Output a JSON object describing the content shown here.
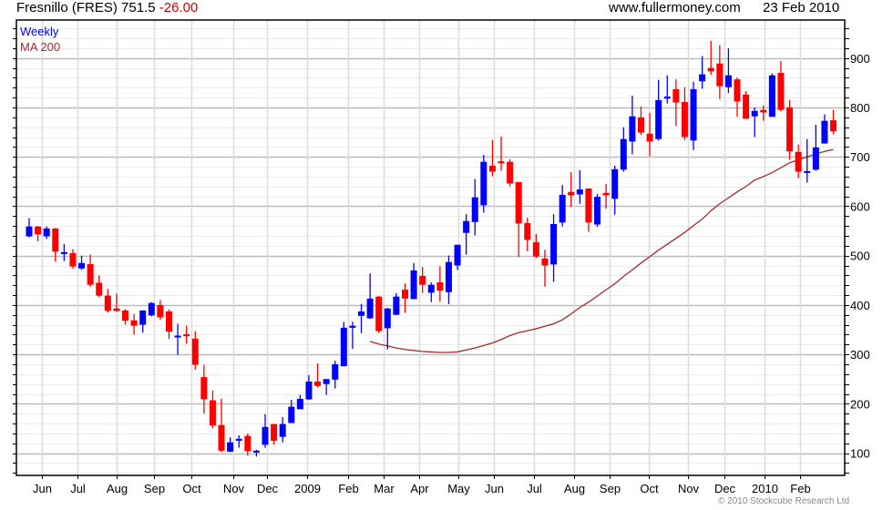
{
  "header": {
    "title": "Fresnillo (FRES) 751.5",
    "change": "-26.00",
    "site": "www.fullermoney.com",
    "date": "23 Feb 2010"
  },
  "legend": {
    "period": "Weekly",
    "ma": "MA 200"
  },
  "copyright": "© 2010 Stockcube Research Ltd",
  "colors": {
    "up": "#0000ff",
    "down": "#ff0000",
    "ma": "#a52a2a",
    "grid": "#dcdcdc",
    "grid_major": "#bbbbbb"
  },
  "chart_data": {
    "type": "candlestick",
    "title": "Fresnillo (FRES) 751.5 -26.00",
    "ylim": [
      55,
      977
    ],
    "xlim": [
      -0.46,
      94.3
    ],
    "y_ticks": [
      100,
      200,
      300,
      400,
      500,
      600,
      700,
      800,
      900
    ],
    "y_minor_step": 20,
    "grid": true,
    "x_ticks": [
      {
        "label": "Jun",
        "week": 2.46
      },
      {
        "label": "Jul",
        "week": 6.5
      },
      {
        "label": "Aug",
        "week": 11.0
      },
      {
        "label": "Sep",
        "week": 15.3
      },
      {
        "label": "Oct",
        "week": 19.6
      },
      {
        "label": "Nov",
        "week": 24.3
      },
      {
        "label": "Dec",
        "week": 28.2
      },
      {
        "label": "2009",
        "week": 32.8
      },
      {
        "label": "Feb",
        "week": 37.5
      },
      {
        "label": "Mar",
        "week": 41.6
      },
      {
        "label": "Apr",
        "week": 45.6
      },
      {
        "label": "May",
        "week": 50.1
      },
      {
        "label": "Jun",
        "week": 54.2
      },
      {
        "label": "Jul",
        "week": 58.8
      },
      {
        "label": "Aug",
        "week": 63.3
      },
      {
        "label": "Sep",
        "week": 67.4
      },
      {
        "label": "Oct",
        "week": 71.9
      },
      {
        "label": "Nov",
        "week": 76.4
      },
      {
        "label": "Dec",
        "week": 80.5
      },
      {
        "label": "2010",
        "week": 85.1
      },
      {
        "label": "Feb",
        "week": 89.2
      }
    ],
    "ohlc_fields": [
      "open",
      "high",
      "low",
      "close"
    ],
    "ohlc": [
      [
        539,
        576,
        537,
        559
      ],
      [
        559,
        560,
        529,
        543
      ],
      [
        539,
        559,
        534,
        555
      ],
      [
        555,
        556,
        488,
        508
      ],
      [
        505,
        524,
        489,
        507
      ],
      [
        505,
        513,
        473,
        478
      ],
      [
        474,
        500,
        471,
        485
      ],
      [
        483,
        502,
        437,
        441
      ],
      [
        445,
        460,
        416,
        419
      ],
      [
        419,
        432,
        385,
        388
      ],
      [
        393,
        423,
        386,
        388
      ],
      [
        389,
        392,
        360,
        368
      ],
      [
        369,
        382,
        340,
        358
      ],
      [
        360,
        389,
        344,
        389
      ],
      [
        379,
        406,
        377,
        404
      ],
      [
        400,
        410,
        370,
        375
      ],
      [
        387,
        391,
        331,
        346
      ],
      [
        336,
        362,
        299,
        338
      ],
      [
        341,
        358,
        322,
        337
      ],
      [
        332,
        347,
        269,
        279
      ],
      [
        254,
        279,
        180,
        209
      ],
      [
        207,
        227,
        150,
        156
      ],
      [
        157,
        210,
        102,
        105
      ],
      [
        103,
        132,
        102,
        122
      ],
      [
        125,
        136,
        111,
        129
      ],
      [
        135,
        140,
        95,
        104
      ],
      [
        102,
        107,
        93,
        105
      ],
      [
        117,
        179,
        111,
        153
      ],
      [
        159,
        159,
        117,
        125
      ],
      [
        133,
        173,
        122,
        159
      ],
      [
        161,
        208,
        161,
        194
      ],
      [
        189,
        218,
        189,
        210
      ],
      [
        209,
        258,
        208,
        245
      ],
      [
        245,
        282,
        233,
        236
      ],
      [
        240,
        250,
        218,
        250
      ],
      [
        249,
        287,
        231,
        280
      ],
      [
        276,
        366,
        276,
        354
      ],
      [
        354,
        366,
        311,
        358
      ],
      [
        378,
        402,
        343,
        387
      ],
      [
        373,
        464,
        372,
        413
      ],
      [
        417,
        418,
        343,
        347
      ],
      [
        353,
        394,
        310,
        393
      ],
      [
        380,
        424,
        380,
        417
      ],
      [
        431,
        444,
        384,
        413
      ],
      [
        412,
        485,
        412,
        470
      ],
      [
        459,
        477,
        424,
        441
      ],
      [
        425,
        446,
        406,
        441
      ],
      [
        446,
        479,
        407,
        429
      ],
      [
        426,
        500,
        402,
        487
      ],
      [
        480,
        522,
        471,
        522
      ],
      [
        546,
        584,
        502,
        570
      ],
      [
        568,
        655,
        541,
        618
      ],
      [
        602,
        704,
        587,
        690
      ],
      [
        682,
        734,
        661,
        670
      ],
      [
        691,
        741,
        672,
        687
      ],
      [
        690,
        695,
        640,
        646
      ],
      [
        649,
        649,
        497,
        565
      ],
      [
        566,
        577,
        509,
        532
      ],
      [
        527,
        544,
        495,
        498
      ],
      [
        494,
        512,
        437,
        480
      ],
      [
        482,
        584,
        447,
        564
      ],
      [
        567,
        643,
        559,
        623
      ],
      [
        629,
        669,
        599,
        622
      ],
      [
        624,
        673,
        605,
        634
      ],
      [
        636,
        636,
        548,
        567
      ],
      [
        563,
        625,
        558,
        619
      ],
      [
        627,
        645,
        595,
        622
      ],
      [
        615,
        682,
        583,
        675
      ],
      [
        674,
        760,
        670,
        736
      ],
      [
        731,
        824,
        705,
        782
      ],
      [
        780,
        802,
        744,
        749
      ],
      [
        747,
        789,
        701,
        731
      ],
      [
        736,
        856,
        733,
        815
      ],
      [
        818,
        865,
        808,
        822
      ],
      [
        837,
        857,
        762,
        810
      ],
      [
        811,
        841,
        734,
        740
      ],
      [
        733,
        852,
        714,
        837
      ],
      [
        853,
        904,
        838,
        867
      ],
      [
        880,
        935,
        866,
        873
      ],
      [
        889,
        926,
        817,
        843
      ],
      [
        841,
        920,
        829,
        865
      ],
      [
        857,
        861,
        781,
        812
      ],
      [
        826,
        833,
        777,
        777
      ],
      [
        782,
        800,
        740,
        793
      ],
      [
        795,
        804,
        773,
        790
      ],
      [
        781,
        869,
        781,
        865
      ],
      [
        870,
        894,
        792,
        795
      ],
      [
        800,
        815,
        694,
        711
      ],
      [
        710,
        725,
        657,
        670
      ],
      [
        668,
        736,
        648,
        671
      ],
      [
        674,
        765,
        672,
        719
      ],
      [
        727,
        786,
        727,
        773
      ],
      [
        774,
        795,
        746,
        751.5
      ]
    ],
    "ma200_start_week": 40,
    "ma200": [
      326,
      321,
      317,
      313,
      310,
      308,
      306,
      305,
      304,
      304,
      305,
      309,
      313,
      318,
      323,
      330,
      338,
      344,
      348,
      352,
      357,
      362,
      370,
      382,
      395,
      406,
      418,
      431,
      443,
      458,
      471,
      485,
      498,
      511,
      523,
      535,
      547,
      561,
      574,
      591,
      605,
      617,
      629,
      640,
      653,
      660,
      668,
      678,
      688,
      694,
      700,
      706,
      711,
      715
    ]
  }
}
